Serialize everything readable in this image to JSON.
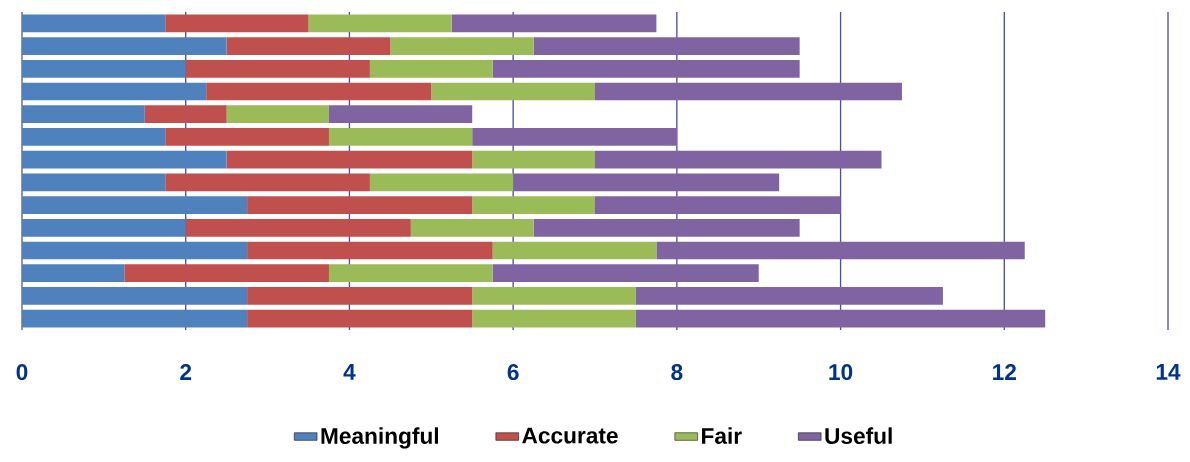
{
  "chart_data": {
    "type": "bar",
    "orientation": "horizontal",
    "stacked": true,
    "categories": [
      null,
      null,
      null,
      null,
      null,
      null,
      null,
      null,
      null,
      null,
      null,
      null,
      null,
      null
    ],
    "series": [
      {
        "name": "Meaningful",
        "color": "#4f81bd",
        "values": [
          1.75,
          2.5,
          2,
          2.25,
          1.5,
          1.75,
          2.5,
          1.75,
          2.75,
          2,
          2.75,
          1.25,
          2.75,
          2.75
        ]
      },
      {
        "name": "Accurate",
        "color": "#c0504d",
        "values": [
          1.75,
          2,
          2.25,
          2.75,
          1,
          2,
          3,
          2.5,
          2.75,
          2.75,
          3,
          2.5,
          2.75,
          2.75
        ]
      },
      {
        "name": "Fair",
        "color": "#9bbb59",
        "values": [
          1.75,
          1.75,
          1.5,
          2,
          1.25,
          1.75,
          1.5,
          1.75,
          1.5,
          1.5,
          2,
          2,
          2,
          2
        ]
      },
      {
        "name": "Useful",
        "color": "#8064a2",
        "values": [
          2.5,
          3.25,
          3.75,
          3.75,
          1.75,
          2.5,
          3.5,
          3.25,
          3,
          3.25,
          4.5,
          3.25,
          3.75,
          5
        ]
      }
    ],
    "xlim": [
      0,
      14
    ],
    "xticks": [
      0,
      2,
      4,
      6,
      8,
      10,
      12,
      14
    ],
    "grid": "x",
    "legend": "bottom"
  }
}
